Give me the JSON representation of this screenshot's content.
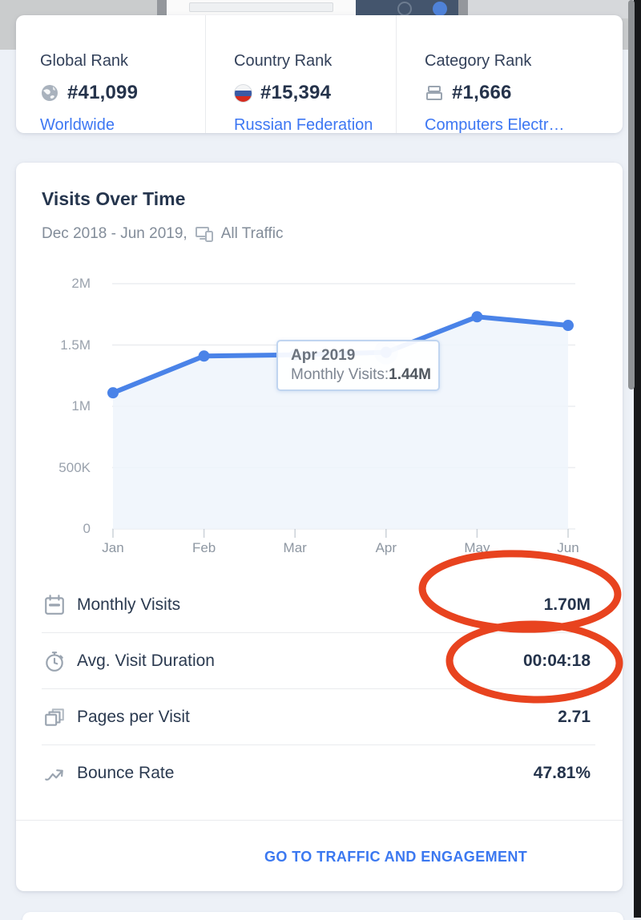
{
  "rank_cards": [
    {
      "label": "Global Rank",
      "value": "#41,099",
      "link": "Worldwide",
      "icon": "globe-icon"
    },
    {
      "label": "Country Rank",
      "value": "#15,394",
      "link": "Russian Federation",
      "icon": "russia-flag-icon"
    },
    {
      "label": "Category Rank",
      "value": "#1,666",
      "link": "Computers Electr…",
      "icon": "category-icon"
    }
  ],
  "visits_card": {
    "title": "Visits Over Time",
    "date_range": "Dec 2018 - Jun 2019,",
    "traffic_label": "All Traffic",
    "traffic_icon": "devices-icon",
    "footer_link": "GO TO TRAFFIC AND ENGAGEMENT"
  },
  "chart_data": {
    "type": "line",
    "title": "Visits Over Time",
    "categories": [
      "Jan",
      "Feb",
      "Mar",
      "Apr",
      "May",
      "Jun"
    ],
    "series": [
      {
        "name": "Monthly Visits",
        "values": [
          1.11,
          1.41,
          1.42,
          1.44,
          1.73,
          1.66
        ]
      }
    ],
    "unit": "millions",
    "ylim": [
      0,
      2
    ],
    "y_ticks": [
      {
        "label": "2M",
        "value": 2
      },
      {
        "label": "1.5M",
        "value": 1.5
      },
      {
        "label": "1M",
        "value": 1
      },
      {
        "label": "500K",
        "value": 0.5
      },
      {
        "label": "0",
        "value": 0
      }
    ],
    "grid": true,
    "legend": "none",
    "highlight_index": 3,
    "tooltip": {
      "title": "Apr 2019",
      "label": "Monthly Visits:",
      "value": "1.44M"
    },
    "line_color": "#4a83e8",
    "area_color": "#eef4fb"
  },
  "metrics": {
    "rows": [
      {
        "label": "Monthly Visits",
        "value": "1.70M",
        "icon": "calendar-icon",
        "annotated": true
      },
      {
        "label": "Avg. Visit Duration",
        "value": "00:04:18",
        "icon": "stopwatch-icon",
        "annotated": true
      },
      {
        "label": "Pages per Visit",
        "value": "2.71",
        "icon": "pages-icon",
        "annotated": false
      },
      {
        "label": "Bounce Rate",
        "value": "47.81%",
        "icon": "bounce-icon",
        "annotated": false
      }
    ]
  },
  "annotation_color": "#e8431f"
}
